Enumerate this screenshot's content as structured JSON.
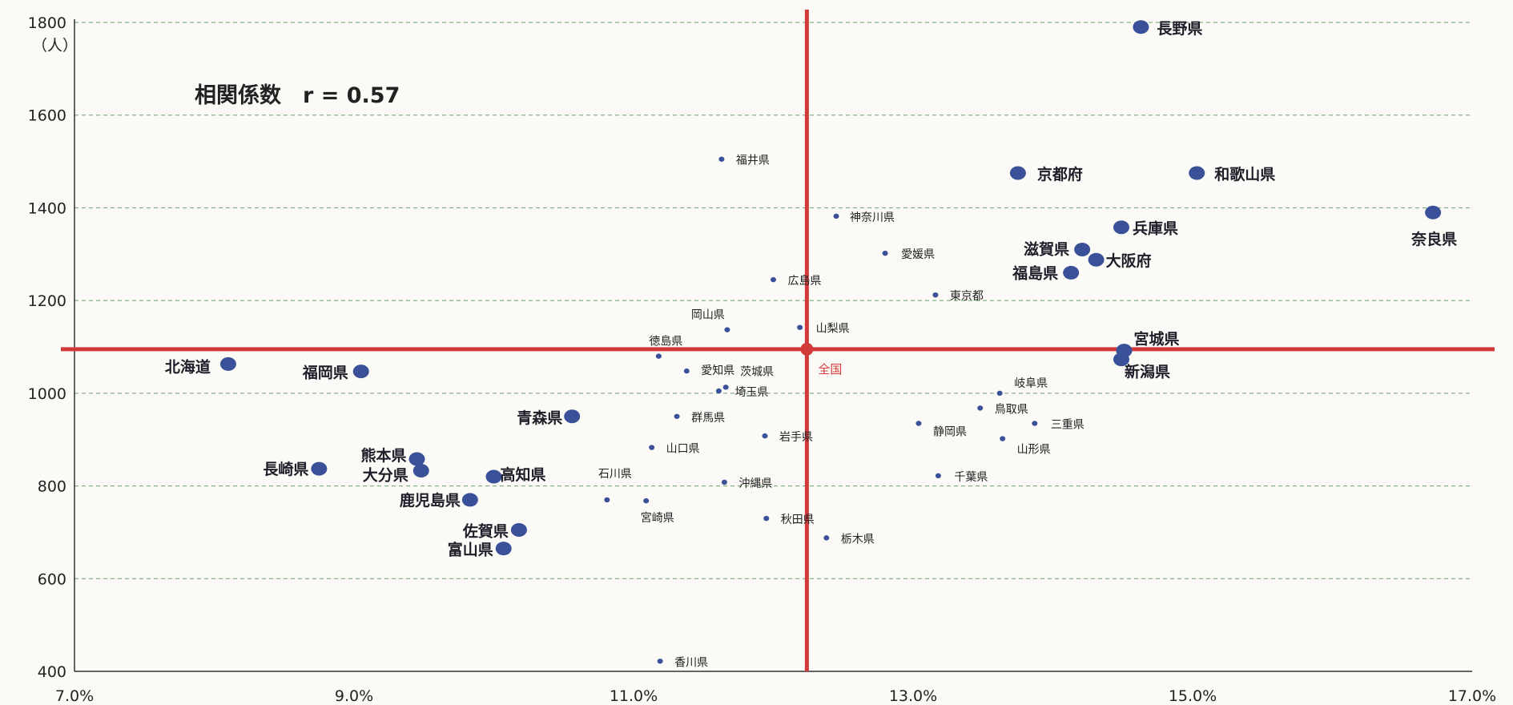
{
  "chart_data": {
    "type": "scatter",
    "title": "相関係数　r = 0.57",
    "xlabel": "",
    "ylabel": "（人）",
    "xlim": [
      0.07,
      0.17
    ],
    "ylim": [
      400,
      1800
    ],
    "x_ticks": [
      0.07,
      0.09,
      0.11,
      0.13,
      0.15,
      0.17
    ],
    "x_tick_labels": [
      "7.0%",
      "9.0%",
      "11.0%",
      "13.0%",
      "15.0%",
      "17.0%"
    ],
    "y_ticks": [
      400,
      600,
      800,
      1000,
      1200,
      1400,
      1600,
      1800
    ],
    "y_tick_labels": [
      "400",
      "600",
      "800",
      "1000",
      "1200",
      "1400",
      "1600",
      "1800"
    ],
    "grid": "horizontal dashed",
    "colors": {
      "point": "#3a5199",
      "reference": "#d23a3a",
      "grid": "#66a066"
    },
    "reference": {
      "name": "全国",
      "x": 0.1224,
      "y": 1095
    },
    "points": [
      {
        "name": "長野県",
        "x": 0.1463,
        "y": 1790,
        "size": "large"
      },
      {
        "name": "福井県",
        "x": 0.1163,
        "y": 1505,
        "size": "small"
      },
      {
        "name": "京都府",
        "x": 0.1375,
        "y": 1475,
        "size": "large"
      },
      {
        "name": "和歌山県",
        "x": 0.1503,
        "y": 1475,
        "size": "large"
      },
      {
        "name": "奈良県",
        "x": 0.1672,
        "y": 1390,
        "size": "large"
      },
      {
        "name": "神奈川県",
        "x": 0.1245,
        "y": 1382,
        "size": "small"
      },
      {
        "name": "兵庫県",
        "x": 0.1449,
        "y": 1358,
        "size": "large"
      },
      {
        "name": "滋賀県",
        "x": 0.1421,
        "y": 1310,
        "size": "large"
      },
      {
        "name": "愛媛県",
        "x": 0.128,
        "y": 1302,
        "size": "small"
      },
      {
        "name": "大阪府",
        "x": 0.1431,
        "y": 1288,
        "size": "large"
      },
      {
        "name": "福島県",
        "x": 0.1413,
        "y": 1260,
        "size": "large"
      },
      {
        "name": "広島県",
        "x": 0.12,
        "y": 1245,
        "size": "small"
      },
      {
        "name": "東京都",
        "x": 0.1316,
        "y": 1212,
        "size": "small"
      },
      {
        "name": "岡山県",
        "x": 0.1167,
        "y": 1137,
        "size": "small"
      },
      {
        "name": "山梨県",
        "x": 0.1219,
        "y": 1142,
        "size": "small"
      },
      {
        "name": "徳島県",
        "x": 0.1118,
        "y": 1080,
        "size": "small"
      },
      {
        "name": "愛知県",
        "x": 0.1138,
        "y": 1048,
        "size": "small"
      },
      {
        "name": "宮城県",
        "x": 0.1451,
        "y": 1092,
        "size": "large"
      },
      {
        "name": "新潟県",
        "x": 0.1449,
        "y": 1073,
        "size": "large"
      },
      {
        "name": "北海道",
        "x": 0.081,
        "y": 1063,
        "size": "large"
      },
      {
        "name": "福岡県",
        "x": 0.0905,
        "y": 1047,
        "size": "large"
      },
      {
        "name": "茨城県",
        "x": 0.1166,
        "y": 1013,
        "size": "small"
      },
      {
        "name": "埼玉県",
        "x": 0.1161,
        "y": 1005,
        "size": "small"
      },
      {
        "name": "岐阜県",
        "x": 0.1362,
        "y": 1000,
        "size": "small"
      },
      {
        "name": "鳥取県",
        "x": 0.1348,
        "y": 968,
        "size": "small"
      },
      {
        "name": "青森県",
        "x": 0.1056,
        "y": 950,
        "size": "large"
      },
      {
        "name": "群馬県",
        "x": 0.1131,
        "y": 950,
        "size": "small"
      },
      {
        "name": "静岡県",
        "x": 0.1304,
        "y": 935,
        "size": "small"
      },
      {
        "name": "三重県",
        "x": 0.1387,
        "y": 935,
        "size": "small"
      },
      {
        "name": "岩手県",
        "x": 0.1194,
        "y": 908,
        "size": "small"
      },
      {
        "name": "山形県",
        "x": 0.1364,
        "y": 902,
        "size": "small"
      },
      {
        "name": "山口県",
        "x": 0.1113,
        "y": 883,
        "size": "small"
      },
      {
        "name": "熊本県",
        "x": 0.0945,
        "y": 858,
        "size": "large"
      },
      {
        "name": "長崎県",
        "x": 0.0875,
        "y": 837,
        "size": "large"
      },
      {
        "name": "大分県",
        "x": 0.0948,
        "y": 833,
        "size": "large"
      },
      {
        "name": "高知県",
        "x": 0.1,
        "y": 820,
        "size": "large"
      },
      {
        "name": "千葉県",
        "x": 0.1318,
        "y": 822,
        "size": "small"
      },
      {
        "name": "石川県",
        "x": 0.1081,
        "y": 770,
        "size": "small"
      },
      {
        "name": "沖縄県",
        "x": 0.1165,
        "y": 808,
        "size": "small"
      },
      {
        "name": "鹿児島県",
        "x": 0.0983,
        "y": 770,
        "size": "large"
      },
      {
        "name": "宮崎県",
        "x": 0.1109,
        "y": 768,
        "size": "small"
      },
      {
        "name": "秋田県",
        "x": 0.1195,
        "y": 730,
        "size": "small"
      },
      {
        "name": "佐賀県",
        "x": 0.1018,
        "y": 705,
        "size": "large"
      },
      {
        "name": "栃木県",
        "x": 0.1238,
        "y": 688,
        "size": "small"
      },
      {
        "name": "富山県",
        "x": 0.1007,
        "y": 665,
        "size": "large"
      },
      {
        "name": "香川県",
        "x": 0.1119,
        "y": 422,
        "size": "small"
      }
    ]
  }
}
